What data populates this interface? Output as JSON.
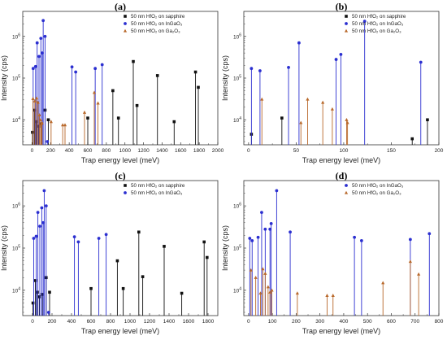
{
  "figure": {
    "colors": {
      "sapphire": "#111111",
      "ingao": "#2b2fd0",
      "gao": "#b8682a"
    },
    "legend_labels": {
      "sapphire": "50 nm HfO₂ on sapphire",
      "ingao": "50 nm HfO₂ on InGaO₃",
      "gao": "50 nm HfO₂ on Ga₂O₃"
    }
  },
  "chart_data": [
    {
      "id": "a",
      "panel_label": "(a)",
      "type": "scatter",
      "style": "stem",
      "xlabel": "Trap energy level (meV)",
      "ylabel": "Intensity (cps)",
      "xlim": [
        -100,
        2000
      ],
      "ylim_log10": [
        3.4,
        6.6
      ],
      "xticks": [
        0,
        200,
        400,
        600,
        800,
        1000,
        1200,
        1400,
        1600,
        1800,
        2000
      ],
      "yticks_exp": [
        4,
        5,
        6
      ],
      "legend_position": "top-right",
      "series": [
        {
          "name": "50 nm HfO₂ on sapphire",
          "key": "sapphire",
          "marker": "square",
          "x": [
            5,
            25,
            45,
            70,
            100,
            140,
            175,
            600,
            870,
            930,
            1090,
            1130,
            1350,
            1530,
            1760,
            1790
          ],
          "y": [
            5000,
            17000,
            9000,
            7000,
            8000,
            17000,
            10000,
            11000,
            50000,
            11000,
            250000,
            22000,
            115000,
            9000,
            140000,
            60000
          ]
        },
        {
          "name": "50 nm HfO₂ on InGaO₃",
          "key": "ingao",
          "marker": "circle",
          "x": [
            12,
            38,
            55,
            75,
            95,
            110,
            120,
            140,
            165,
            430,
            470,
            680,
            755
          ],
          "y": [
            170000,
            190000,
            700000,
            330000,
            900000,
            400000,
            2400000,
            1000000,
            3000,
            185000,
            140000,
            170000,
            210000
          ]
        },
        {
          "name": "50 nm HfO₂ on Ga₂O₃",
          "key": "gao",
          "marker": "triangle",
          "x": [
            10,
            30,
            50,
            65,
            80,
            92,
            100,
            108,
            205,
            330,
            355,
            565,
            670,
            710
          ],
          "y": [
            32000,
            28000,
            33000,
            26000,
            13000,
            10000,
            8000,
            8500,
            9000,
            7500,
            7500,
            15000,
            45000,
            25000
          ]
        }
      ]
    },
    {
      "id": "b",
      "panel_label": "(b)",
      "type": "scatter",
      "style": "stem",
      "xlabel": "Trap energy level (meV)",
      "ylabel": "Intensity (cps)",
      "xlim": [
        -5,
        200
      ],
      "ylim_log10": [
        3.4,
        6.6
      ],
      "xticks": [
        0,
        50,
        100,
        150,
        200
      ],
      "yticks_exp": [
        4,
        5,
        6
      ],
      "legend_position": "top-right",
      "series": [
        {
          "name": "50 nm HfO₂ on sapphire",
          "key": "sapphire",
          "marker": "square",
          "x": [
            3,
            35,
            172,
            188
          ],
          "y": [
            4500,
            11000,
            3500,
            10000
          ]
        },
        {
          "name": "50 nm HfO₂ on InGaO₃",
          "key": "ingao",
          "marker": "circle",
          "x": [
            3,
            12,
            42,
            53,
            92,
            97,
            122,
            181
          ],
          "y": [
            170000,
            150000,
            180000,
            700000,
            280000,
            370000,
            2300000,
            240000
          ]
        },
        {
          "name": "50 nm HfO₂ on Ga₂O₃",
          "key": "gao",
          "marker": "triangle",
          "x": [
            14,
            55,
            62,
            78,
            88,
            103,
            104
          ],
          "y": [
            31000,
            8500,
            31000,
            26000,
            18000,
            10000,
            8500
          ]
        }
      ]
    },
    {
      "id": "c",
      "panel_label": "(c)",
      "type": "scatter",
      "style": "stem",
      "xlabel": "Trap energy level (meV)",
      "ylabel": "Intensity (cps)",
      "xlim": [
        -100,
        1900
      ],
      "ylim_log10": [
        3.4,
        6.6
      ],
      "xticks": [
        0,
        200,
        400,
        600,
        800,
        1000,
        1200,
        1400,
        1600,
        1800
      ],
      "yticks_exp": [
        4,
        5,
        6
      ],
      "legend_position": "top-right",
      "series": [
        {
          "name": "50 nm HfO₂ on sapphire",
          "key": "sapphire",
          "marker": "square",
          "x": [
            5,
            30,
            50,
            70,
            100,
            140,
            175,
            600,
            870,
            930,
            1090,
            1130,
            1350,
            1530,
            1760,
            1790
          ],
          "y": [
            5000,
            17000,
            9000,
            7000,
            8000,
            20000,
            9000,
            11000,
            50000,
            11000,
            240000,
            21000,
            110000,
            8500,
            140000,
            60000
          ]
        },
        {
          "name": "50 nm HfO₂ on InGaO₃",
          "key": "ingao",
          "marker": "circle",
          "x": [
            12,
            38,
            55,
            75,
            95,
            110,
            120,
            140,
            165,
            430,
            470,
            680,
            755
          ],
          "y": [
            170000,
            190000,
            700000,
            330000,
            900000,
            400000,
            2300000,
            1000000,
            3000,
            185000,
            140000,
            170000,
            210000
          ]
        }
      ]
    },
    {
      "id": "d",
      "panel_label": "(d)",
      "type": "scatter",
      "style": "stem",
      "xlabel": "Trap energy level (meV)",
      "ylabel": "Intensity (cps)",
      "xlim": [
        -20,
        800
      ],
      "ylim_log10": [
        3.4,
        6.6
      ],
      "xticks": [
        0,
        100,
        200,
        300,
        400,
        500,
        600,
        700,
        800
      ],
      "yticks_exp": [
        4,
        5,
        6
      ],
      "legend_position": "top-right",
      "series": [
        {
          "name": "50 nm HfO₂ on InGaO₃",
          "key": "ingao",
          "marker": "circle",
          "x": [
            5,
            15,
            40,
            55,
            70,
            90,
            95,
            118,
            175,
            445,
            475,
            680,
            760
          ],
          "y": [
            170000,
            150000,
            180000,
            700000,
            280000,
            280000,
            380000,
            2300000,
            240000,
            180000,
            150000,
            160000,
            220000
          ]
        },
        {
          "name": "50 nm HfO₂ on Ga₂O₃",
          "key": "gao",
          "marker": "triangle",
          "x": [
            10,
            30,
            50,
            60,
            70,
            82,
            90,
            98,
            205,
            330,
            355,
            565,
            680,
            715
          ],
          "y": [
            30000,
            20000,
            8500,
            32000,
            25000,
            12000,
            9000,
            10000,
            8500,
            7500,
            7500,
            15000,
            48000,
            24000
          ]
        }
      ]
    }
  ]
}
